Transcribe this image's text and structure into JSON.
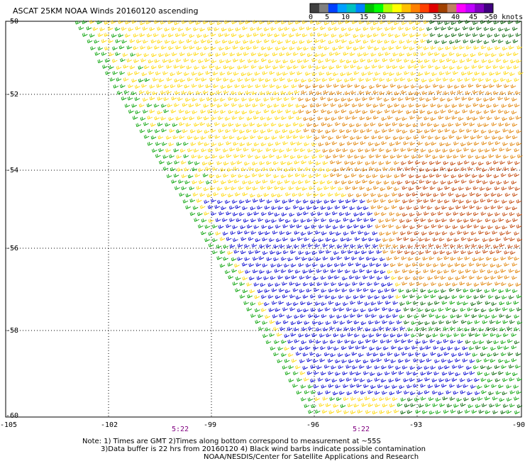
{
  "title": "ASCAT 25KM NOAA Winds 20160120 ascending",
  "legend": {
    "colors": [
      "#404040",
      "#808080",
      "#0040ff",
      "#00a0ff",
      "#00c0c0",
      "#0080ff",
      "#00c000",
      "#00ff00",
      "#b0ff00",
      "#ffff00",
      "#ffc000",
      "#ff8000",
      "#ff4000",
      "#e00000",
      "#a04000",
      "#c08060",
      "#ff00ff",
      "#c000ff",
      "#8000c0",
      "#400080"
    ],
    "labels": [
      "0",
      "5",
      "10",
      "15",
      "20",
      "25",
      "30",
      "35",
      "40",
      "45",
      ">50 knots"
    ]
  },
  "lat_labels": [
    "-50",
    "-52",
    "-54",
    "-56",
    "-58",
    "-60"
  ],
  "lon_labels": [
    "-105",
    "-102",
    "-99",
    "-96",
    "-93",
    "-90"
  ],
  "time_labels": [
    "5:22",
    "5:22"
  ],
  "notes": [
    "Note: 1) Times are GMT 2)Times along bottom correspond to measurement at ~55S",
    "3)Data buffer is 22 hrs from 20160120 4) Black wind barbs indicate possible contamination",
    "NOAA/NESDIS/Center for Satellite Applications and Research"
  ],
  "wind_colors": {
    "blue": "#0000d0",
    "green": "#00a000",
    "dark_green": "#006000",
    "yellow": "#ffd700",
    "orange": "#e08000",
    "dark_orange": "#c04000"
  }
}
